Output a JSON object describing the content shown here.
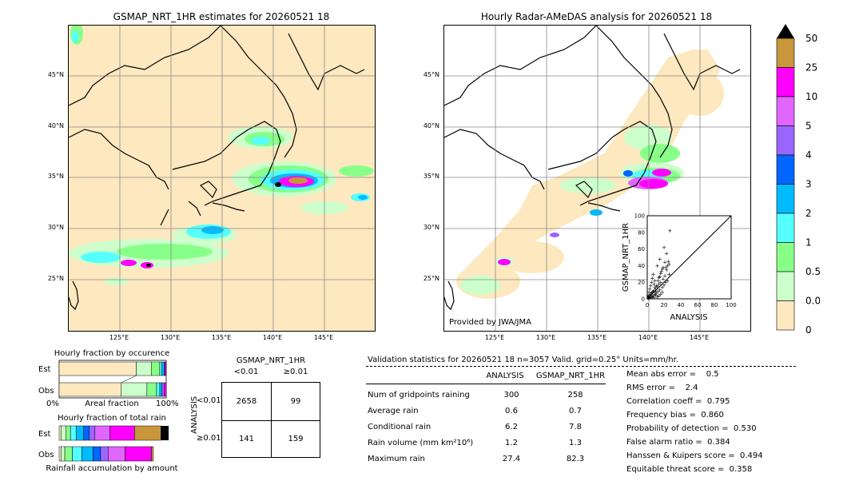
{
  "left_map": {
    "title": "GSMAP_NRT_1HR estimates for 20260521 18",
    "lat_labels": [
      "45°N",
      "40°N",
      "35°N",
      "30°N",
      "25°N"
    ],
    "lon_labels": [
      "125°E",
      "130°E",
      "135°E",
      "140°E",
      "145°E"
    ]
  },
  "right_map": {
    "title": "Hourly Radar-AMeDAS analysis for 20260521 18",
    "lat_labels": [
      "45°N",
      "40°N",
      "35°N",
      "30°N",
      "25°N"
    ],
    "lon_labels": [
      "125°E",
      "130°E",
      "135°E",
      "140°E",
      "145°E"
    ],
    "credit": "Provided by JWA/JMA"
  },
  "colorbar": {
    "labels": [
      "50",
      "25",
      "10",
      "5",
      "4",
      "3",
      "2",
      "1",
      "0.5",
      "0.01",
      "0"
    ],
    "colors": [
      "#c8963c",
      "#ff00ff",
      "#e066ff",
      "#9966ff",
      "#0066ff",
      "#00bbff",
      "#55ffff",
      "#88ff88",
      "#ccffcc",
      "#fde8bf"
    ]
  },
  "chart_data": [
    {
      "type": "scatter",
      "title": "",
      "xlabel": "ANALYSIS",
      "ylabel": "GSMAP_NRT_1HR",
      "xlim": [
        0,
        100
      ],
      "ylim": [
        0,
        100
      ],
      "ticks": [
        "0",
        "20",
        "40",
        "60",
        "80",
        "100"
      ],
      "points": [
        [
          1,
          1
        ],
        [
          2,
          3
        ],
        [
          3,
          2
        ],
        [
          4,
          6
        ],
        [
          5,
          3
        ],
        [
          6,
          8
        ],
        [
          7,
          4
        ],
        [
          8,
          10
        ],
        [
          9,
          6
        ],
        [
          10,
          12
        ],
        [
          11,
          7
        ],
        [
          12,
          15
        ],
        [
          13,
          9
        ],
        [
          14,
          18
        ],
        [
          15,
          11
        ],
        [
          16,
          20
        ],
        [
          18,
          14
        ],
        [
          19,
          24
        ],
        [
          20,
          17
        ],
        [
          21,
          28
        ],
        [
          22,
          20
        ],
        [
          23,
          35
        ],
        [
          24,
          22
        ],
        [
          25,
          45
        ],
        [
          26,
          30
        ],
        [
          27,
          82
        ],
        [
          2,
          8
        ],
        [
          3,
          12
        ],
        [
          4,
          16
        ],
        [
          5,
          20
        ],
        [
          6,
          25
        ],
        [
          7,
          30
        ],
        [
          8,
          18
        ],
        [
          9,
          22
        ],
        [
          10,
          5
        ],
        [
          12,
          3
        ],
        [
          14,
          4
        ],
        [
          16,
          6
        ],
        [
          18,
          8
        ],
        [
          1,
          4
        ],
        [
          2,
          1
        ],
        [
          3,
          5
        ],
        [
          4,
          2
        ],
        [
          5,
          7
        ],
        [
          6,
          3
        ],
        [
          7,
          9
        ],
        [
          8,
          2
        ],
        [
          9,
          14
        ],
        [
          10,
          9
        ],
        [
          11,
          16
        ],
        [
          13,
          22
        ],
        [
          15,
          27
        ],
        [
          17,
          33
        ],
        [
          19,
          38
        ],
        [
          21,
          44
        ],
        [
          23,
          55
        ],
        [
          12,
          40
        ],
        [
          15,
          48
        ],
        [
          20,
          62
        ],
        [
          14,
          26
        ],
        [
          16,
          31
        ],
        [
          18,
          36
        ],
        [
          22,
          38
        ],
        [
          24,
          40
        ],
        [
          26,
          42
        ]
      ]
    },
    {
      "type": "bar",
      "title": "Hourly fraction by occurence",
      "categories": [
        "Est",
        "Obs"
      ],
      "xlabel_left": "0%",
      "xlabel_mid": "Areal fraction",
      "xlabel_right": "100%",
      "series": [
        {
          "values": [
            0.72,
            0.58
          ]
        },
        {
          "values": [
            0.14,
            0.24
          ]
        },
        {
          "values": [
            0.08,
            0.09
          ]
        },
        {
          "values": [
            0.02,
            0.03
          ]
        },
        {
          "values": [
            0.02,
            0.02
          ]
        },
        {
          "values": [
            0.01,
            0.02
          ]
        },
        {
          "values": [
            0.01,
            0.02
          ]
        }
      ],
      "colors": [
        "#fde8bf",
        "#ccffcc",
        "#88ff88",
        "#55ffff",
        "#00bbff",
        "#9966ff",
        "#ff00ff"
      ]
    },
    {
      "type": "bar",
      "title": "Hourly fraction of total rain",
      "categories": [
        "Est",
        "Obs"
      ],
      "xlabel": "Rainfall accumulation by amount",
      "series": [
        {
          "values": [
            0.02,
            0.02
          ]
        },
        {
          "values": [
            0.05,
            0.04
          ]
        },
        {
          "values": [
            0.05,
            0.08
          ]
        },
        {
          "values": [
            0.06,
            0.1
          ]
        },
        {
          "values": [
            0.08,
            0.12
          ]
        },
        {
          "values": [
            0.06,
            0.08
          ]
        },
        {
          "values": [
            0.06,
            0.08
          ]
        },
        {
          "values": [
            0.16,
            0.18
          ]
        },
        {
          "values": [
            0.26,
            0.28
          ]
        },
        {
          "values": [
            0.28,
            0.02
          ]
        }
      ],
      "colors": [
        "#fde8bf",
        "#ccffcc",
        "#88ff88",
        "#55ffff",
        "#00bbff",
        "#0066ff",
        "#9966ff",
        "#e066ff",
        "#ff00ff",
        "#c8963c"
      ],
      "extra_black": 0.12
    }
  ],
  "contingency": {
    "header": "GSMAP_NRT_1HR",
    "col_labels": [
      "<0.01",
      "≥0.01"
    ],
    "row_labels": [
      "<0.01",
      "≥0.01"
    ],
    "side_label": "ANALYSIS",
    "cells": [
      [
        "2658",
        "99"
      ],
      [
        "141",
        "159"
      ]
    ]
  },
  "validation": {
    "header": "Validation statistics for 20260521 18  n=3057 Valid. grid=0.25° Units=mm/hr.",
    "col_analysis": "ANALYSIS",
    "col_gsmap": "GSMAP_NRT_1HR",
    "rows": [
      {
        "label": "Num of gridpoints raining",
        "a": "300",
        "g": "258"
      },
      {
        "label": "Average rain",
        "a": "0.6",
        "g": "0.7"
      },
      {
        "label": "Conditional rain",
        "a": "6.2",
        "g": "7.8"
      },
      {
        "label": "Rain volume (mm km²10⁶)",
        "a": "1.2",
        "g": "1.3"
      },
      {
        "label": "Maximum rain",
        "a": "27.4",
        "g": "82.3"
      }
    ],
    "scores": [
      "Mean abs error =    0.5",
      "RMS error =    2.4",
      "Correlation coeff =  0.795",
      "Frequency bias =  0.860",
      "Probability of detection =  0.530",
      "False alarm ratio =  0.384",
      "Hanssen & Kuipers score =  0.494",
      "Equitable threat score =  0.358"
    ]
  }
}
